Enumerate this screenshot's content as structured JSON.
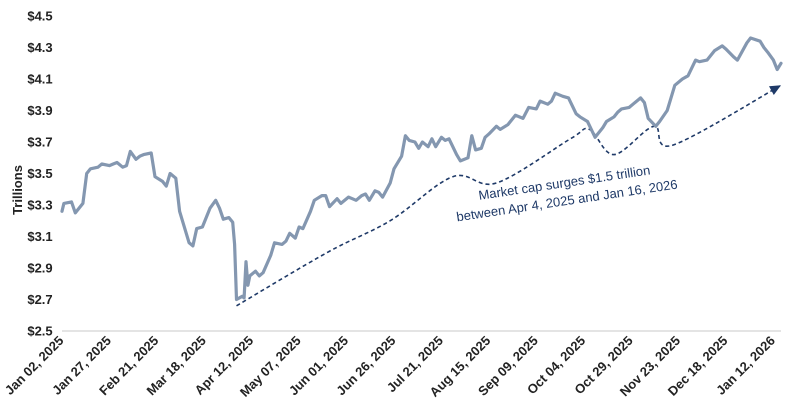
{
  "chart_data": {
    "type": "line",
    "title": "",
    "xlabel": "",
    "ylabel": "Trillions",
    "ylim": [
      2.5,
      4.5
    ],
    "grid": false,
    "legend": "none",
    "yticks": [
      "$2.5",
      "$2.7",
      "$2.9",
      "$3.1",
      "$3.3",
      "$3.5",
      "$3.7",
      "$3.9",
      "$4.1",
      "$4.3",
      "$4.5"
    ],
    "xticks": [
      "Jan 02, 2025",
      "Jan 27, 2025",
      "Feb 21, 2025",
      "Mar 18, 2025",
      "Apr 12, 2025",
      "May 07, 2025",
      "Jun 01, 2025",
      "Jun 26, 2025",
      "Jul 21, 2025",
      "Aug 15, 2025",
      "Sep 09, 2025",
      "Oct 04, 2025",
      "Oct 29, 2025",
      "Nov 23, 2025",
      "Dec 18, 2025",
      "Jan 12, 2026"
    ],
    "series": [
      {
        "color": "#8497b0",
        "points": [
          [
            "2025-01-02",
            3.26
          ],
          [
            "2025-01-03",
            3.31
          ],
          [
            "2025-01-07",
            3.32
          ],
          [
            "2025-01-09",
            3.25
          ],
          [
            "2025-01-13",
            3.31
          ],
          [
            "2025-01-15",
            3.5
          ],
          [
            "2025-01-17",
            3.53
          ],
          [
            "2025-01-21",
            3.54
          ],
          [
            "2025-01-23",
            3.56
          ],
          [
            "2025-01-27",
            3.55
          ],
          [
            "2025-01-29",
            3.56
          ],
          [
            "2025-01-31",
            3.57
          ],
          [
            "2025-02-03",
            3.54
          ],
          [
            "2025-02-05",
            3.55
          ],
          [
            "2025-02-07",
            3.64
          ],
          [
            "2025-02-10",
            3.59
          ],
          [
            "2025-02-12",
            3.61
          ],
          [
            "2025-02-14",
            3.62
          ],
          [
            "2025-02-18",
            3.63
          ],
          [
            "2025-02-20",
            3.48
          ],
          [
            "2025-02-24",
            3.45
          ],
          [
            "2025-02-26",
            3.42
          ],
          [
            "2025-02-28",
            3.5
          ],
          [
            "2025-03-03",
            3.47
          ],
          [
            "2025-03-05",
            3.26
          ],
          [
            "2025-03-07",
            3.18
          ],
          [
            "2025-03-10",
            3.06
          ],
          [
            "2025-03-12",
            3.04
          ],
          [
            "2025-03-14",
            3.15
          ],
          [
            "2025-03-17",
            3.16
          ],
          [
            "2025-03-19",
            3.22
          ],
          [
            "2025-03-21",
            3.28
          ],
          [
            "2025-03-24",
            3.33
          ],
          [
            "2025-03-26",
            3.28
          ],
          [
            "2025-03-28",
            3.21
          ],
          [
            "2025-03-31",
            3.22
          ],
          [
            "2025-04-02",
            3.19
          ],
          [
            "2025-04-03",
            3.05
          ],
          [
            "2025-04-04",
            2.7
          ],
          [
            "2025-04-07",
            2.72
          ],
          [
            "2025-04-08",
            2.71
          ],
          [
            "2025-04-09",
            2.94
          ],
          [
            "2025-04-10",
            2.79
          ],
          [
            "2025-04-11",
            2.85
          ],
          [
            "2025-04-14",
            2.88
          ],
          [
            "2025-04-16",
            2.85
          ],
          [
            "2025-04-18",
            2.87
          ],
          [
            "2025-04-22",
            2.98
          ],
          [
            "2025-04-24",
            3.06
          ],
          [
            "2025-04-28",
            3.05
          ],
          [
            "2025-04-30",
            3.07
          ],
          [
            "2025-05-02",
            3.12
          ],
          [
            "2025-05-05",
            3.09
          ],
          [
            "2025-05-07",
            3.16
          ],
          [
            "2025-05-09",
            3.15
          ],
          [
            "2025-05-13",
            3.26
          ],
          [
            "2025-05-15",
            3.33
          ],
          [
            "2025-05-19",
            3.36
          ],
          [
            "2025-05-21",
            3.36
          ],
          [
            "2025-05-23",
            3.29
          ],
          [
            "2025-05-27",
            3.34
          ],
          [
            "2025-05-29",
            3.31
          ],
          [
            "2025-06-02",
            3.35
          ],
          [
            "2025-06-04",
            3.34
          ],
          [
            "2025-06-06",
            3.33
          ],
          [
            "2025-06-09",
            3.36
          ],
          [
            "2025-06-11",
            3.37
          ],
          [
            "2025-06-13",
            3.33
          ],
          [
            "2025-06-16",
            3.39
          ],
          [
            "2025-06-18",
            3.38
          ],
          [
            "2025-06-20",
            3.35
          ],
          [
            "2025-06-24",
            3.44
          ],
          [
            "2025-06-26",
            3.53
          ],
          [
            "2025-06-30",
            3.61
          ],
          [
            "2025-07-02",
            3.74
          ],
          [
            "2025-07-04",
            3.71
          ],
          [
            "2025-07-07",
            3.7
          ],
          [
            "2025-07-09",
            3.66
          ],
          [
            "2025-07-11",
            3.7
          ],
          [
            "2025-07-14",
            3.67
          ],
          [
            "2025-07-16",
            3.72
          ],
          [
            "2025-07-18",
            3.67
          ],
          [
            "2025-07-21",
            3.73
          ],
          [
            "2025-07-23",
            3.71
          ],
          [
            "2025-07-25",
            3.72
          ],
          [
            "2025-07-29",
            3.62
          ],
          [
            "2025-07-31",
            3.58
          ],
          [
            "2025-08-04",
            3.6
          ],
          [
            "2025-08-06",
            3.74
          ],
          [
            "2025-08-08",
            3.65
          ],
          [
            "2025-08-11",
            3.66
          ],
          [
            "2025-08-13",
            3.73
          ],
          [
            "2025-08-15",
            3.75
          ],
          [
            "2025-08-19",
            3.8
          ],
          [
            "2025-08-21",
            3.78
          ],
          [
            "2025-08-25",
            3.81
          ],
          [
            "2025-08-27",
            3.84
          ],
          [
            "2025-08-29",
            3.87
          ],
          [
            "2025-09-02",
            3.85
          ],
          [
            "2025-09-05",
            3.92
          ],
          [
            "2025-09-09",
            3.91
          ],
          [
            "2025-09-11",
            3.96
          ],
          [
            "2025-09-15",
            3.94
          ],
          [
            "2025-09-17",
            3.96
          ],
          [
            "2025-09-19",
            4.01
          ],
          [
            "2025-09-23",
            3.99
          ],
          [
            "2025-09-26",
            3.98
          ],
          [
            "2025-09-30",
            3.88
          ],
          [
            "2025-10-02",
            3.86
          ],
          [
            "2025-10-06",
            3.83
          ],
          [
            "2025-10-08",
            3.78
          ],
          [
            "2025-10-10",
            3.73
          ],
          [
            "2025-10-14",
            3.79
          ],
          [
            "2025-10-16",
            3.83
          ],
          [
            "2025-10-20",
            3.86
          ],
          [
            "2025-10-22",
            3.89
          ],
          [
            "2025-10-24",
            3.91
          ],
          [
            "2025-10-28",
            3.92
          ],
          [
            "2025-10-30",
            3.94
          ],
          [
            "2025-11-03",
            3.98
          ],
          [
            "2025-11-05",
            3.95
          ],
          [
            "2025-11-07",
            3.85
          ],
          [
            "2025-11-11",
            3.8
          ],
          [
            "2025-11-13",
            3.83
          ],
          [
            "2025-11-17",
            3.9
          ],
          [
            "2025-11-19",
            3.98
          ],
          [
            "2025-11-21",
            4.06
          ],
          [
            "2025-11-25",
            4.1
          ],
          [
            "2025-11-28",
            4.12
          ],
          [
            "2025-12-02",
            4.22
          ],
          [
            "2025-12-04",
            4.21
          ],
          [
            "2025-12-08",
            4.22
          ],
          [
            "2025-12-10",
            4.25
          ],
          [
            "2025-12-12",
            4.28
          ],
          [
            "2025-12-16",
            4.31
          ],
          [
            "2025-12-18",
            4.29
          ],
          [
            "2025-12-22",
            4.24
          ],
          [
            "2025-12-24",
            4.22
          ],
          [
            "2025-12-29",
            4.33
          ],
          [
            "2025-12-31",
            4.36
          ],
          [
            "2026-01-05",
            4.34
          ],
          [
            "2026-01-07",
            4.3
          ],
          [
            "2026-01-09",
            4.27
          ],
          [
            "2026-01-12",
            4.22
          ],
          [
            "2026-01-14",
            4.16
          ],
          [
            "2026-01-16",
            4.2
          ]
        ]
      }
    ],
    "trend_arrow": {
      "color": "#1f3a68",
      "points": [
        [
          "2025-04-04",
          2.66
        ],
        [
          "2025-05-22",
          3.0
        ],
        [
          "2025-06-24",
          3.2
        ],
        [
          "2025-07-27",
          3.48
        ],
        [
          "2025-08-19",
          3.44
        ],
        [
          "2025-09-27",
          3.72
        ],
        [
          "2025-10-07",
          3.78
        ],
        [
          "2025-10-20",
          3.62
        ],
        [
          "2025-11-10",
          3.8
        ],
        [
          "2025-11-20",
          3.68
        ],
        [
          "2026-01-16",
          4.06
        ]
      ]
    },
    "annotation": {
      "line1": "Market cap surges $1.5 trillion",
      "line2": "between Apr 4, 2025 and Jan 16, 2026",
      "color": "#1f3a68"
    }
  }
}
